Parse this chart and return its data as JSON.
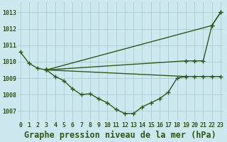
{
  "title": "Graphe pression niveau de la mer (hPa)",
  "bg_color": "#cde8ee",
  "grid_color": "#aacdd4",
  "line_color": "#2d5a1b",
  "x_ticks": [
    0,
    1,
    2,
    3,
    4,
    5,
    6,
    7,
    8,
    9,
    10,
    11,
    12,
    13,
    14,
    15,
    16,
    17,
    18,
    19,
    20,
    21,
    22,
    23
  ],
  "y_ticks": [
    1007,
    1008,
    1009,
    1010,
    1011,
    1012,
    1013
  ],
  "ylim": [
    1006.4,
    1013.6
  ],
  "xlim": [
    -0.3,
    23.3
  ],
  "series": [
    {
      "x": [
        0,
        1,
        2,
        3,
        4,
        5,
        6,
        7,
        8,
        9,
        10,
        11,
        12,
        13,
        14,
        15,
        16,
        17,
        18,
        19,
        20,
        21,
        22,
        23
      ],
      "y": [
        1010.6,
        1009.9,
        1009.6,
        1009.5,
        1009.1,
        1008.85,
        1008.35,
        1008.0,
        1008.05,
        1007.75,
        1007.5,
        1007.1,
        1006.85,
        1006.85,
        1007.25,
        1007.5,
        1007.75,
        1008.15,
        1009.0,
        1009.1,
        1009.1,
        1009.1,
        1009.1,
        1009.1
      ]
    },
    {
      "x": [
        3,
        22,
        23
      ],
      "y": [
        1009.5,
        1012.2,
        1013.0
      ]
    },
    {
      "x": [
        3,
        19,
        20,
        21,
        22,
        23
      ],
      "y": [
        1009.5,
        1010.05,
        1010.05,
        1010.05,
        1012.2,
        1013.0
      ]
    },
    {
      "x": [
        3,
        19
      ],
      "y": [
        1009.5,
        1009.1
      ]
    }
  ],
  "marker": "+",
  "marker_size": 4,
  "line_width": 1.0,
  "title_fontsize": 8.5,
  "tick_fontsize": 6.0,
  "tick_color": "#2d5a1b"
}
